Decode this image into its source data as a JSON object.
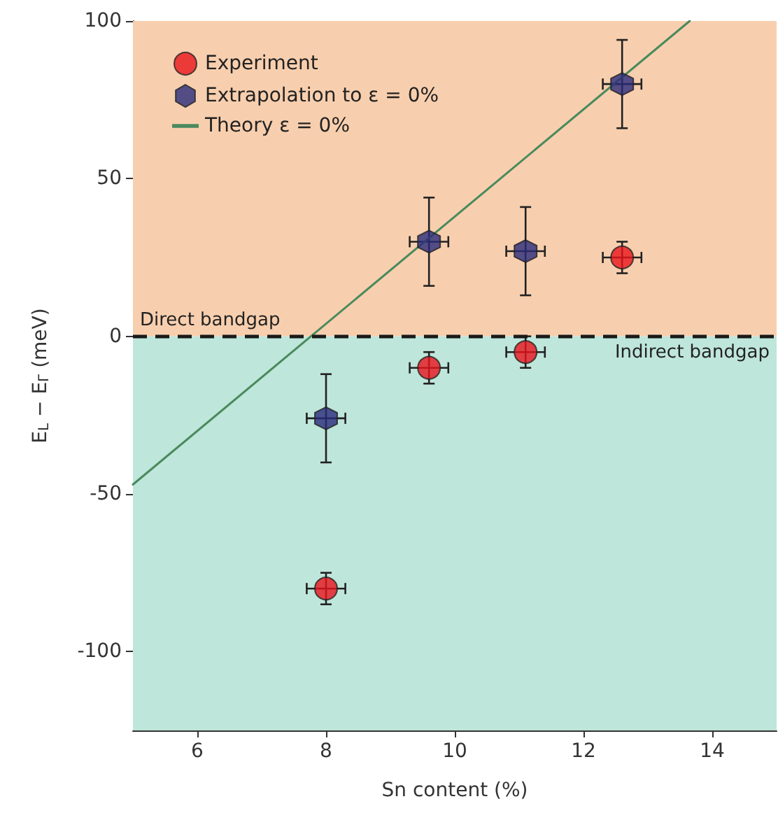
{
  "chart_data": {
    "type": "scatter",
    "xlabel": "Sn content (%)",
    "ylabel": "E$_{L}$ − E$_{Γ}$ (meV)",
    "xlim": [
      5,
      15
    ],
    "ylim": [
      -125,
      100
    ],
    "xticks": [
      6,
      8,
      10,
      12,
      14
    ],
    "yticks": [
      -100,
      -50,
      0,
      50,
      100
    ],
    "grid": false,
    "legend": "top left",
    "series": [
      {
        "name": "Experiment",
        "marker": "circle",
        "color": "#e8141c",
        "x": [
          8,
          9.6,
          11.1,
          12.6
        ],
        "values": [
          -80,
          -10,
          -5,
          25
        ],
        "errors": [
          5,
          5,
          5,
          5
        ],
        "xerrors": [
          0.3,
          0.3,
          0.3,
          0.3
        ]
      },
      {
        "name": "Extrapolation to ε = 0%",
        "color": "#2b2a7a",
        "x": [
          8,
          9.6,
          11.1,
          12.6
        ],
        "values": [
          -26,
          30,
          27,
          80
        ],
        "errors": [
          14,
          14,
          14,
          14
        ],
        "xerrors": [
          0.3,
          0.3,
          0.3,
          0.3
        ]
      },
      {
        "name": "Theory ε = 0%",
        "type": "line",
        "marker": "none",
        "line_style": "solid",
        "color": "#4a8a5e",
        "x": [
          5,
          13.65
        ],
        "values": [
          -47,
          100
        ]
      }
    ],
    "ref_lines": [
      {
        "axis": "y",
        "value": 0,
        "color": "#1a1a1a",
        "line_style": "dashed"
      }
    ],
    "bands": [
      {
        "axis": "y",
        "from": 0,
        "to": 100,
        "label": "Direct bandgap",
        "color": "#f8cfae"
      },
      {
        "axis": "y",
        "from": -125,
        "to": 0,
        "label": "Indirect bandgap",
        "color": "#bfe6da"
      }
    ]
  }
}
